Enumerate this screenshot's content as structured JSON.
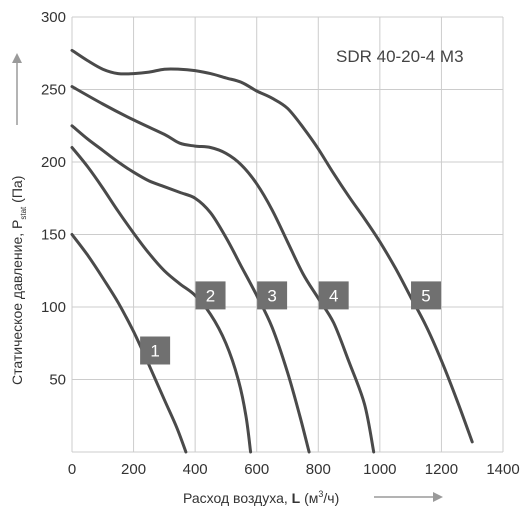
{
  "chart_data": {
    "type": "line",
    "title": "SDR 40-20-4 M3",
    "xlabel_prefix": "Расход воздуха, ",
    "xlabel_symbol": "L",
    "xlabel_unit_pre": " (м",
    "xlabel_unit_sup": "3",
    "xlabel_unit_post": "/ч)",
    "ylabel_main": "Статическое давление, P",
    "ylabel_sub": "stat",
    "ylabel_unit": " (Па)",
    "xlim": [
      0,
      1400
    ],
    "ylim": [
      0,
      300
    ],
    "xticks": [
      0,
      200,
      400,
      600,
      800,
      1000,
      1200,
      1400
    ],
    "yticks": [
      50,
      100,
      150,
      200,
      250,
      300
    ],
    "grid": true,
    "colors": {
      "curve": "#4a4a4a",
      "label_bg": "#707070",
      "grid": "#cccccc",
      "arrow": "#9a9a9a"
    },
    "series": [
      {
        "name": "1",
        "label_at": [
          270,
          70
        ],
        "points": [
          [
            0,
            150
          ],
          [
            50,
            136
          ],
          [
            100,
            120
          ],
          [
            150,
            103
          ],
          [
            200,
            83
          ],
          [
            250,
            60
          ],
          [
            300,
            36
          ],
          [
            340,
            17
          ],
          [
            370,
            0
          ]
        ]
      },
      {
        "name": "2",
        "label_at": [
          450,
          108
        ],
        "points": [
          [
            0,
            210
          ],
          [
            50,
            197
          ],
          [
            100,
            182
          ],
          [
            150,
            166
          ],
          [
            200,
            151
          ],
          [
            250,
            137
          ],
          [
            300,
            125
          ],
          [
            350,
            116
          ],
          [
            400,
            108
          ],
          [
            450,
            95
          ],
          [
            500,
            75
          ],
          [
            540,
            50
          ],
          [
            565,
            25
          ],
          [
            580,
            0
          ]
        ]
      },
      {
        "name": "3",
        "label_at": [
          650,
          108
        ],
        "points": [
          [
            0,
            225
          ],
          [
            50,
            216
          ],
          [
            100,
            208
          ],
          [
            150,
            200
          ],
          [
            200,
            193
          ],
          [
            250,
            187
          ],
          [
            300,
            183
          ],
          [
            350,
            179
          ],
          [
            400,
            175
          ],
          [
            450,
            165
          ],
          [
            500,
            148
          ],
          [
            550,
            128
          ],
          [
            600,
            108
          ],
          [
            650,
            86
          ],
          [
            700,
            55
          ],
          [
            740,
            25
          ],
          [
            770,
            0
          ]
        ]
      },
      {
        "name": "4",
        "label_at": [
          850,
          108
        ],
        "points": [
          [
            0,
            252
          ],
          [
            100,
            240
          ],
          [
            200,
            229
          ],
          [
            300,
            219
          ],
          [
            350,
            213
          ],
          [
            400,
            211
          ],
          [
            450,
            210
          ],
          [
            500,
            206
          ],
          [
            550,
            198
          ],
          [
            600,
            185
          ],
          [
            650,
            167
          ],
          [
            700,
            145
          ],
          [
            750,
            123
          ],
          [
            800,
            106
          ],
          [
            850,
            89
          ],
          [
            900,
            62
          ],
          [
            950,
            33
          ],
          [
            980,
            0
          ]
        ]
      },
      {
        "name": "5",
        "label_at": [
          1150,
          108
        ],
        "points": [
          [
            0,
            277
          ],
          [
            50,
            270
          ],
          [
            100,
            264
          ],
          [
            150,
            261
          ],
          [
            200,
            261
          ],
          [
            250,
            262
          ],
          [
            300,
            264
          ],
          [
            350,
            264
          ],
          [
            400,
            263
          ],
          [
            450,
            261
          ],
          [
            500,
            258
          ],
          [
            550,
            255
          ],
          [
            600,
            249
          ],
          [
            650,
            244
          ],
          [
            700,
            237
          ],
          [
            750,
            224
          ],
          [
            800,
            209
          ],
          [
            850,
            192
          ],
          [
            900,
            176
          ],
          [
            950,
            161
          ],
          [
            1000,
            145
          ],
          [
            1050,
            127
          ],
          [
            1100,
            107
          ],
          [
            1150,
            87
          ],
          [
            1200,
            63
          ],
          [
            1250,
            36
          ],
          [
            1300,
            7
          ]
        ]
      }
    ]
  }
}
